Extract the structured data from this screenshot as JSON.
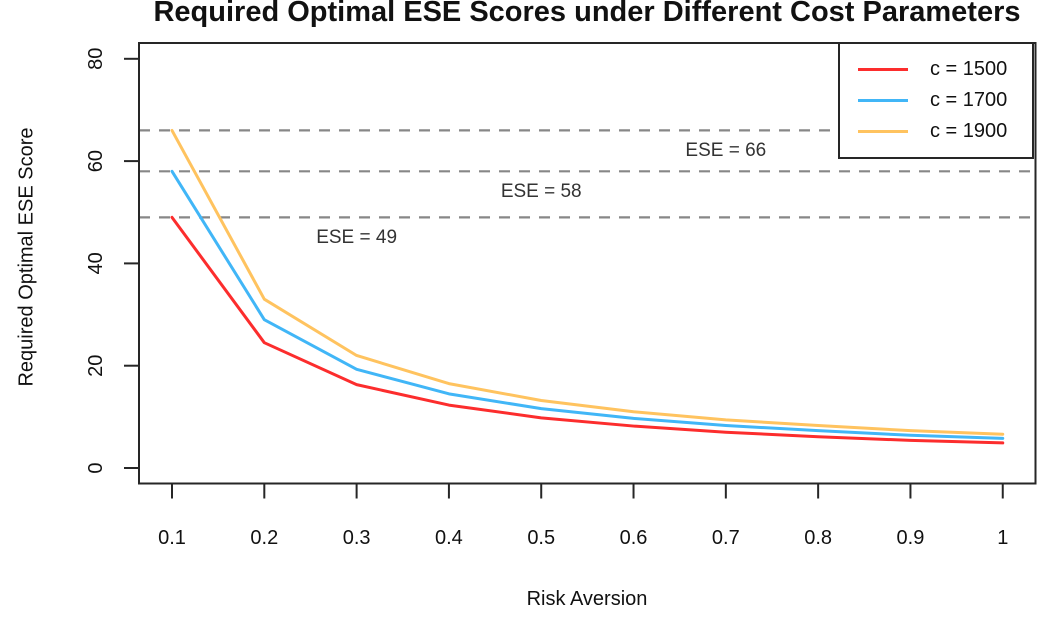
{
  "title": "Required Optimal ESE Scores under Different Cost Parameters",
  "chart_data": {
    "type": "line",
    "title": "Required Optimal ESE Scores under Different Cost Parameters",
    "xlabel": "Risk Aversion",
    "ylabel": "Required Optimal ESE Score",
    "xlim": [
      0.1,
      1.0
    ],
    "ylim": [
      0,
      80
    ],
    "grid": false,
    "legend_position": "top-right",
    "x": [
      0.1,
      0.2,
      0.3,
      0.4,
      0.5,
      0.6,
      0.7,
      0.8,
      0.9,
      1.0
    ],
    "x_tick_labels": [
      "0.1",
      "0.2",
      "0.3",
      "0.4",
      "0.5",
      "0.6",
      "0.7",
      "0.8",
      "0.9",
      "1"
    ],
    "y_ticks": [
      0,
      20,
      40,
      60,
      80
    ],
    "series": [
      {
        "name": "c = 1500",
        "color": "#FC2D2D",
        "values": [
          49.0,
          24.5,
          16.3,
          12.3,
          9.8,
          8.2,
          7.0,
          6.1,
          5.4,
          4.9
        ]
      },
      {
        "name": "c = 1700",
        "color": "#41B6F7",
        "values": [
          58.0,
          29.0,
          19.3,
          14.5,
          11.6,
          9.7,
          8.3,
          7.3,
          6.4,
          5.8
        ]
      },
      {
        "name": "c = 1900",
        "color": "#FFC35F",
        "values": [
          66.0,
          33.0,
          22.0,
          16.5,
          13.2,
          11.0,
          9.4,
          8.3,
          7.3,
          6.6
        ]
      }
    ],
    "reference_lines": [
      {
        "y": 66,
        "label": "ESE = 66",
        "label_x": 0.7,
        "style": "dashed",
        "color": "#878787"
      },
      {
        "y": 58,
        "label": "ESE = 58",
        "label_x": 0.5,
        "style": "dashed",
        "color": "#878787"
      },
      {
        "y": 49,
        "label": "ESE = 49",
        "label_x": 0.3,
        "style": "dashed",
        "color": "#878787"
      }
    ],
    "axis_color": "#262626",
    "annotation_color": "#333333"
  }
}
